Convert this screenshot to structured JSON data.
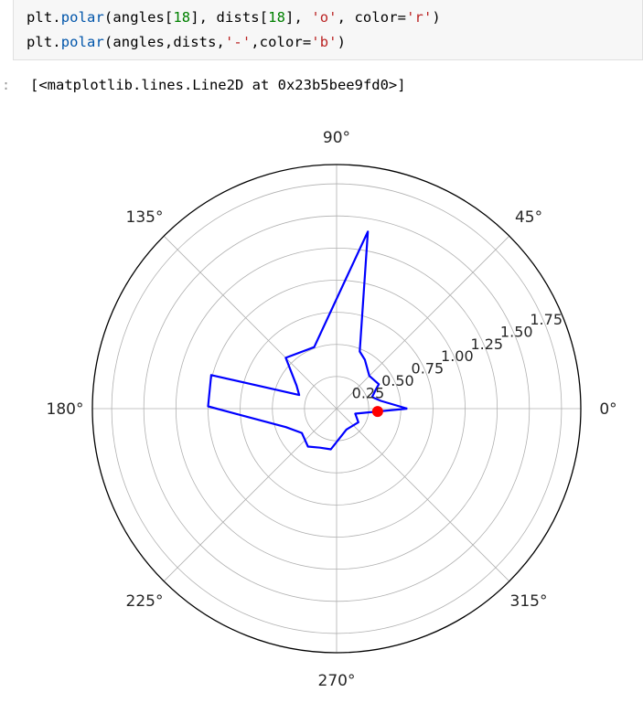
{
  "code": {
    "line1": {
      "obj": "plt",
      "dot": ".",
      "fn": "polar",
      "p1": "(angles[",
      "n1": "18",
      "p2": "], dists[",
      "n2": "18",
      "p3": "], ",
      "s1": "'o'",
      "p4": ", color=",
      "s2": "'r'",
      "p5": ")"
    },
    "line2": {
      "obj": "plt",
      "dot": ".",
      "fn": "polar",
      "p1": "(angles,dists,",
      "s1": "'-'",
      "p2": ",color=",
      "s2": "'b'",
      "p3": ")"
    }
  },
  "output": {
    "prompt": ":",
    "text": "[<matplotlib.lines.Line2D at 0x23b5bee9fd0>]"
  },
  "chart_data": {
    "type": "polar",
    "theta_ticks": [
      "0°",
      "45°",
      "90°",
      "135°",
      "180°",
      "225°",
      "270°",
      "315°"
    ],
    "r_ticks": [
      "0.25",
      "0.50",
      "0.75",
      "1.00",
      "1.25",
      "1.50",
      "1.75"
    ],
    "r_tick_values": [
      0.25,
      0.5,
      0.75,
      1.0,
      1.25,
      1.5,
      1.75
    ],
    "r_max": 1.9,
    "series": [
      {
        "style": "line",
        "color": "#0000ff",
        "points_deg_r": [
          [
            0,
            0.55
          ],
          [
            10,
            0.35
          ],
          [
            18,
            0.29
          ],
          [
            26,
            0.34
          ],
          [
            30,
            0.38
          ],
          [
            45,
            0.36
          ],
          [
            60,
            0.44
          ],
          [
            68,
            0.48
          ],
          [
            80,
            1.4
          ],
          [
            110,
            0.51
          ],
          [
            135,
            0.56
          ],
          [
            150,
            0.36
          ],
          [
            160,
            0.31
          ],
          [
            165,
            1.01
          ],
          [
            179,
            1.0
          ],
          [
            200,
            0.42
          ],
          [
            215,
            0.33
          ],
          [
            233,
            0.37
          ],
          [
            247,
            0.33
          ],
          [
            262,
            0.32
          ],
          [
            295,
            0.18
          ],
          [
            328,
            0.2
          ],
          [
            345,
            0.15
          ],
          [
            0,
            0.55
          ]
        ]
      },
      {
        "style": "marker",
        "color": "#ff0000",
        "points_deg_r": [
          [
            356,
            0.32
          ]
        ]
      }
    ],
    "grid": true
  }
}
